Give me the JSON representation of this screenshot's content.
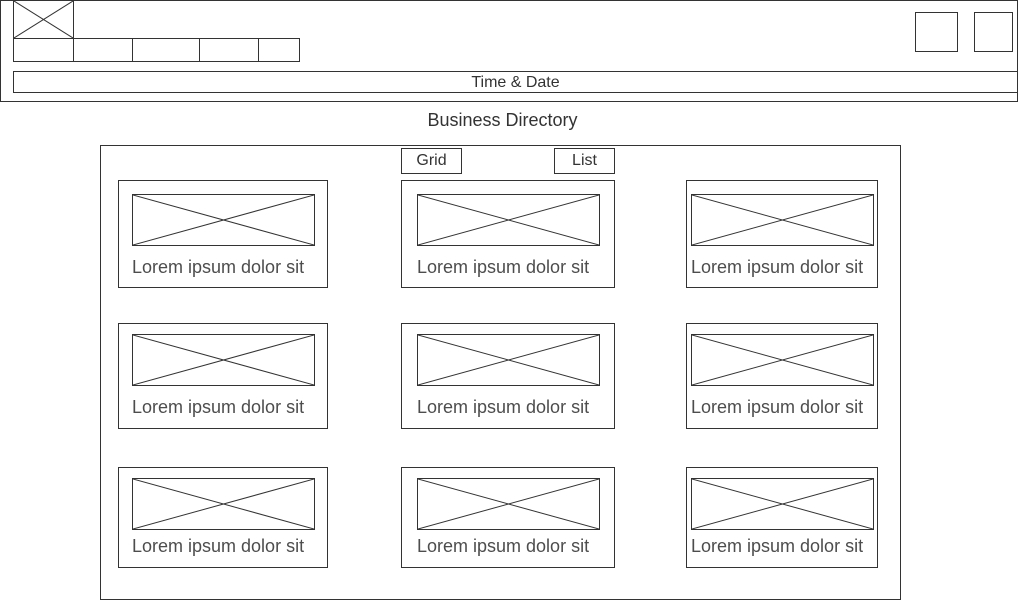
{
  "header": {
    "logo_icon": "placeholder-image-icon",
    "nav_items": [
      "",
      "",
      "",
      "",
      ""
    ],
    "right_buttons": [
      "",
      ""
    ],
    "time_date_label": "Time & Date"
  },
  "page_title": "Business Directory",
  "view_toggle": {
    "grid_label": "Grid",
    "list_label": "List"
  },
  "cards": [
    {
      "image_icon": "placeholder-image-icon",
      "label": "Lorem ipsum dolor sit"
    },
    {
      "image_icon": "placeholder-image-icon",
      "label": "Lorem ipsum dolor sit"
    },
    {
      "image_icon": "placeholder-image-icon",
      "label": "Lorem ipsum dolor sit"
    },
    {
      "image_icon": "placeholder-image-icon",
      "label": "Lorem ipsum dolor sit"
    },
    {
      "image_icon": "placeholder-image-icon",
      "label": "Lorem ipsum dolor sit"
    },
    {
      "image_icon": "placeholder-image-icon",
      "label": "Lorem ipsum dolor sit"
    },
    {
      "image_icon": "placeholder-image-icon",
      "label": "Lorem ipsum dolor sit"
    },
    {
      "image_icon": "placeholder-image-icon",
      "label": "Lorem ipsum dolor sit"
    },
    {
      "image_icon": "placeholder-image-icon",
      "label": "Lorem ipsum dolor sit"
    }
  ],
  "colors": {
    "stroke": "#333333",
    "text": "#4d4d4d",
    "background": "#ffffff"
  }
}
